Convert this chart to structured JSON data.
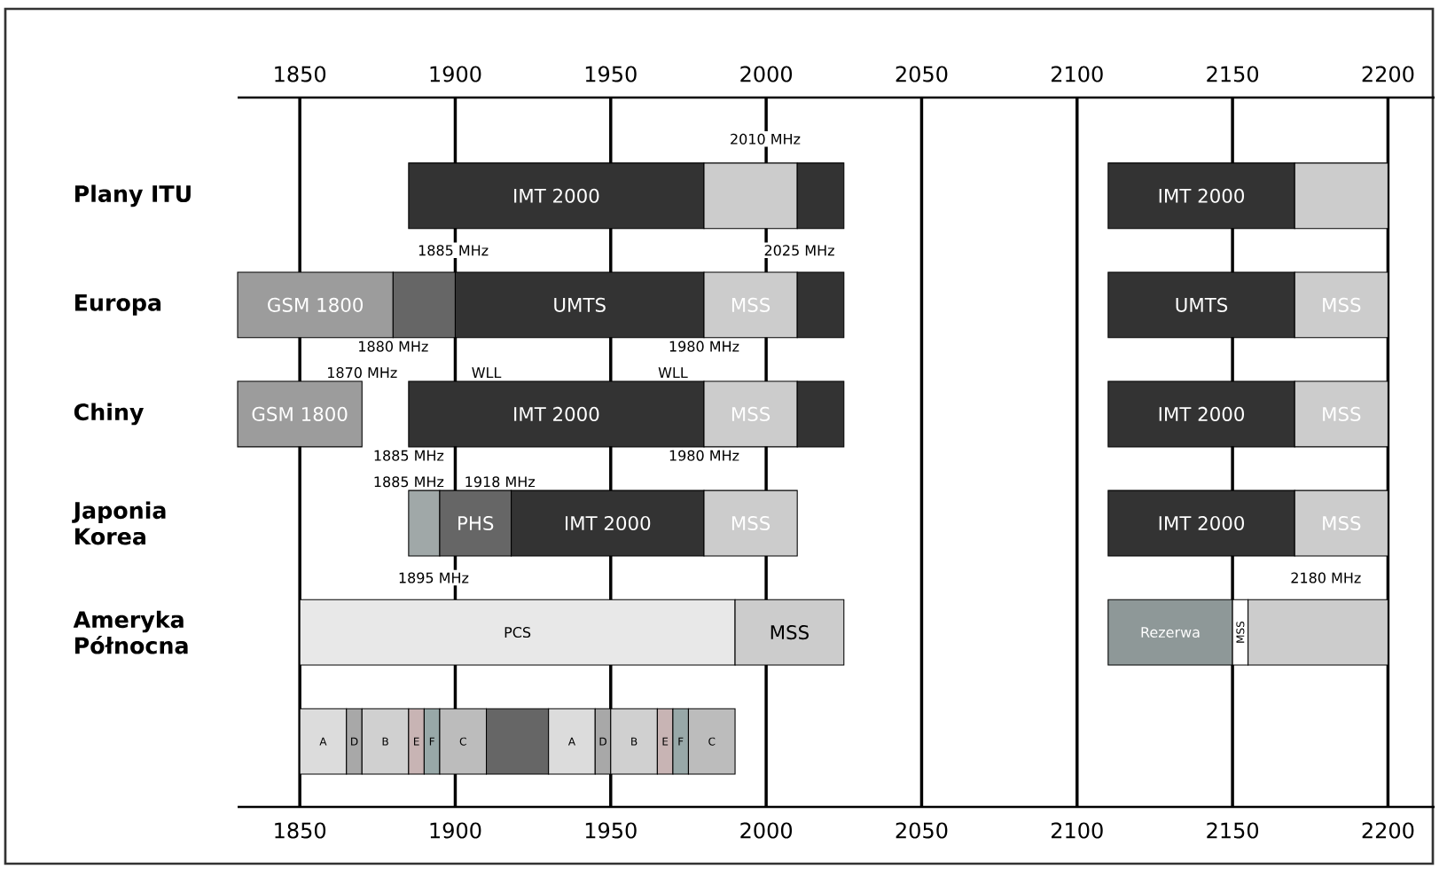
{
  "chart_data": {
    "type": "bar",
    "orientation": "horizontal",
    "grid": "x",
    "categories": [
      "Plany ITU",
      "Europa",
      "Chiny",
      "Japonia Korea",
      "Ameryka Północna",
      null
    ],
    "series": [
      {
        "values": [
          95,
          50,
          40,
          10,
          140,
          15
        ],
        "base": [
          1885,
          1830,
          1830,
          1885,
          1850,
          1850
        ],
        "colors": [
          "#333333",
          "#9c9c9c",
          "#9c9c9c",
          "#a0a8a8",
          "#e8e8e8",
          "#dcdcdc"
        ]
      },
      {
        "values": [
          30,
          20,
          95,
          23,
          35,
          5
        ],
        "base": [
          1980,
          1880,
          1885,
          1895,
          1990,
          1865
        ],
        "colors": [
          "#cccccc",
          "#666666",
          "#333333",
          "#666666",
          "#cccccc",
          "#a8a8a8"
        ]
      },
      {
        "values": [
          15,
          80,
          30,
          62,
          40,
          15
        ],
        "base": [
          2010,
          1900,
          1980,
          1918,
          2110,
          1870
        ],
        "colors": [
          "#333333",
          "#333333",
          "#cccccc",
          "#333333",
          "#8e9898",
          "#d0d0d0"
        ]
      },
      {
        "values": [
          60,
          30,
          15,
          30,
          5,
          5
        ],
        "base": [
          2110,
          1980,
          2010,
          1980,
          2150,
          1885
        ],
        "colors": [
          "#333333",
          "#cccccc",
          "#333333",
          "#cccccc",
          "#ffffff",
          "#c8b4b4"
        ]
      },
      {
        "values": [
          30,
          15,
          60,
          60,
          45,
          5
        ],
        "base": [
          2170,
          2010,
          2110,
          2110,
          2155,
          1890
        ],
        "colors": [
          "#cccccc",
          "#333333",
          "#333333",
          "#333333",
          "#cccccc",
          "#98a8a8"
        ]
      },
      {
        "values": [
          null,
          60,
          30,
          30,
          null,
          15
        ],
        "base": [
          null,
          2110,
          2170,
          2170,
          null,
          1895
        ],
        "colors": [
          null,
          "#333333",
          "#cccccc",
          "#cccccc",
          null,
          "#bcbcbc"
        ]
      },
      {
        "values": [
          null,
          30,
          null,
          null,
          null,
          20
        ],
        "base": [
          null,
          2170,
          null,
          null,
          null,
          1910
        ],
        "colors": [
          null,
          "#cccccc",
          null,
          null,
          null,
          "#666666"
        ]
      },
      {
        "values": [
          null,
          null,
          null,
          null,
          null,
          15
        ],
        "base": [
          null,
          null,
          null,
          null,
          null,
          1930
        ],
        "colors": [
          null,
          null,
          null,
          null,
          null,
          "#dcdcdc"
        ]
      },
      {
        "values": [
          null,
          null,
          null,
          null,
          null,
          5
        ],
        "base": [
          null,
          null,
          null,
          null,
          null,
          1945
        ],
        "colors": [
          null,
          null,
          null,
          null,
          null,
          "#a8a8a8"
        ]
      },
      {
        "values": [
          null,
          null,
          null,
          null,
          null,
          15
        ],
        "base": [
          null,
          null,
          null,
          null,
          null,
          1950
        ],
        "colors": [
          null,
          null,
          null,
          null,
          null,
          "#d0d0d0"
        ]
      },
      {
        "values": [
          null,
          null,
          null,
          null,
          null,
          5
        ],
        "base": [
          null,
          null,
          null,
          null,
          null,
          1965
        ],
        "colors": [
          null,
          null,
          null,
          null,
          null,
          "#c8b4b4"
        ]
      },
      {
        "values": [
          null,
          null,
          null,
          null,
          null,
          5
        ],
        "base": [
          null,
          null,
          null,
          null,
          null,
          1970
        ],
        "colors": [
          null,
          null,
          null,
          null,
          null,
          "#98a8a8"
        ]
      },
      {
        "values": [
          null,
          null,
          null,
          null,
          null,
          15
        ],
        "base": [
          null,
          null,
          null,
          null,
          null,
          1975
        ],
        "colors": [
          null,
          null,
          null,
          null,
          null,
          "#bcbcbc"
        ]
      }
    ],
    "xlim": [
      1830,
      2215
    ],
    "xticks": [
      1850,
      1900,
      1950,
      2000,
      2050,
      2100,
      2150,
      2200
    ],
    "x2lim": [
      1830,
      2215
    ],
    "x2ticks": [
      1850,
      1900,
      1950,
      2000,
      2050,
      2100,
      2150,
      2200
    ],
    "annotations": [
      "IMT 2000",
      "IMT 2000",
      "GSM 1800",
      "UMTS",
      "MSS",
      "UMTS",
      "MSS",
      "GSM 1800",
      "IMT 2000",
      "MSS",
      "IMT 2000",
      "MSS",
      "PHS",
      "IMT 2000",
      "MSS",
      "IMT 2000",
      "MSS",
      "PCS",
      "MSS",
      "Rezerwa",
      "MSS",
      "A",
      "D",
      "B",
      "E",
      "F",
      "C",
      "A",
      "D",
      "B",
      "E",
      "F",
      "C",
      "2010 MHz",
      "1885 MHz",
      "2025 MHz",
      "1880 MHz",
      "1980 MHz",
      "1870 MHz",
      "WLL",
      "WLL",
      "1885 MHz",
      "1980 MHz",
      "1885 MHz",
      "1918 MHz",
      "1895 MHz",
      "2180 MHz"
    ]
  }
}
